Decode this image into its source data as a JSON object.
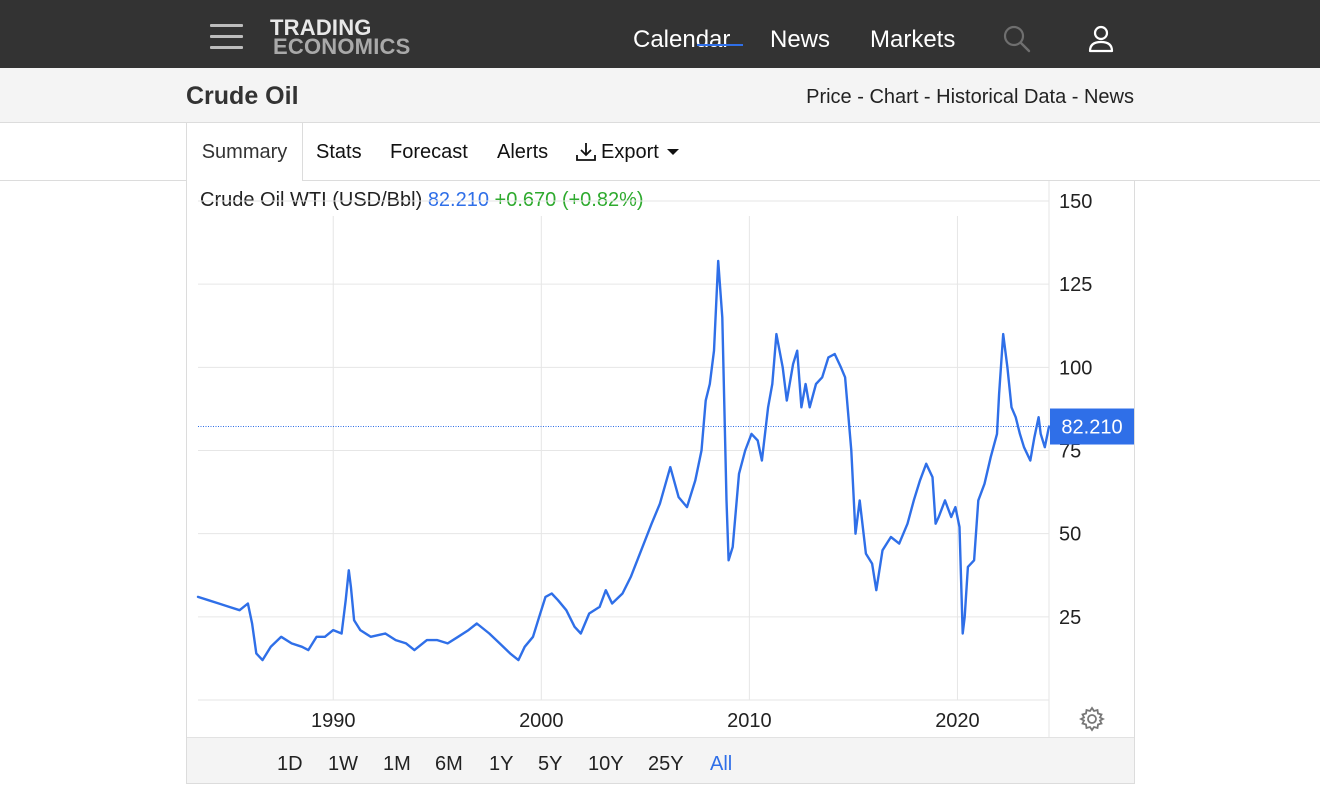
{
  "nav": {
    "logo_line1": "TRADING",
    "logo_line2": "ECONOMICS",
    "calendar": "Calendar",
    "news": "News",
    "markets": "Markets",
    "icons": [
      "menu-icon",
      "search-icon",
      "user-icon"
    ]
  },
  "header": {
    "title": "Crude Oil",
    "links": [
      "Price",
      "Chart",
      "Historical Data",
      "News"
    ],
    "separator": " - "
  },
  "tabs": {
    "summary": "Summary",
    "stats": "Stats",
    "forecast": "Forecast",
    "alerts": "Alerts",
    "export": "Export"
  },
  "quote": {
    "name": "Crude Oil WTI (USD/Bbl)",
    "price": "82.210",
    "change": "+0.670 (+0.82%)"
  },
  "colors": {
    "line": "#2f6fe8",
    "positive": "#2eaa2e",
    "accent": "#2f6fe8"
  },
  "ranges": [
    "1D",
    "1W",
    "1M",
    "6M",
    "1Y",
    "5Y",
    "10Y",
    "25Y",
    "All"
  ],
  "active_range": "All",
  "chart_data": {
    "type": "line",
    "title": "Crude Oil WTI (USD/Bbl)",
    "xlabel": "",
    "ylabel": "",
    "xlim": [
      1983.5,
      2024.4
    ],
    "ylim": [
      0,
      150
    ],
    "x_ticks": [
      1990,
      2000,
      2010,
      2020
    ],
    "y_ticks": [
      25,
      50,
      75,
      100,
      125,
      150
    ],
    "grid": true,
    "last_value": 82.21,
    "last_value_label": "82.210",
    "series": [
      {
        "x": [
          1983.5,
          1984,
          1984.5,
          1985,
          1985.5,
          1985.9,
          1986.1,
          1986.3,
          1986.6,
          1987,
          1987.5,
          1988,
          1988.5,
          1988.8,
          1989.2,
          1989.6,
          1990,
          1990.4,
          1990.6,
          1990.75,
          1990.85,
          1991.0,
          1991.3,
          1991.8,
          1992.5,
          1993,
          1993.5,
          1993.9,
          1994.5,
          1995,
          1995.5,
          1996,
          1996.5,
          1996.9,
          1997.5,
          1998,
          1998.5,
          1998.9,
          1999.2,
          1999.6,
          1999.9,
          2000.2,
          2000.5,
          2000.8,
          2001.2,
          2001.6,
          2001.9,
          2002.3,
          2002.8,
          2003.1,
          2003.4,
          2003.9,
          2004.3,
          2004.8,
          2005.3,
          2005.7,
          2006.2,
          2006.6,
          2007.0,
          2007.4,
          2007.7,
          2007.9,
          2008.1,
          2008.3,
          2008.5,
          2008.7,
          2008.9,
          2009.0,
          2009.2,
          2009.5,
          2009.8,
          2010.1,
          2010.4,
          2010.6,
          2010.9,
          2011.1,
          2011.3,
          2011.6,
          2011.8,
          2012.1,
          2012.3,
          2012.5,
          2012.7,
          2012.9,
          2013.2,
          2013.5,
          2013.8,
          2014.1,
          2014.4,
          2014.6,
          2014.9,
          2015.1,
          2015.3,
          2015.6,
          2015.9,
          2016.1,
          2016.4,
          2016.8,
          2017.2,
          2017.6,
          2017.9,
          2018.2,
          2018.5,
          2018.8,
          2018.95,
          2019.1,
          2019.4,
          2019.7,
          2019.9,
          2020.1,
          2020.25,
          2020.35,
          2020.5,
          2020.8,
          2021.0,
          2021.3,
          2021.6,
          2021.9,
          2022.0,
          2022.2,
          2022.4,
          2022.6,
          2022.8,
          2023.0,
          2023.2,
          2023.5,
          2023.7,
          2023.9,
          2024.0,
          2024.2,
          2024.4
        ],
        "values": [
          31,
          30,
          29,
          28,
          27,
          29,
          23,
          14,
          12,
          16,
          19,
          17,
          16,
          15,
          19,
          19,
          21,
          20,
          30,
          39,
          34,
          24,
          21,
          19,
          20,
          18,
          17,
          15,
          18,
          18,
          17,
          19,
          21,
          23,
          20,
          17,
          14,
          12,
          16,
          19,
          25,
          31,
          32,
          30,
          27,
          22,
          20,
          26,
          28,
          33,
          29,
          32,
          37,
          45,
          53,
          59,
          70,
          61,
          58,
          66,
          75,
          90,
          95,
          105,
          132,
          115,
          60,
          42,
          46,
          68,
          75,
          80,
          78,
          72,
          88,
          95,
          110,
          100,
          90,
          101,
          105,
          88,
          95,
          88,
          95,
          97,
          103,
          104,
          100,
          97,
          75,
          50,
          60,
          44,
          41,
          33,
          45,
          49,
          47,
          53,
          60,
          66,
          71,
          67,
          53,
          55,
          60,
          55,
          58,
          52,
          20,
          25,
          40,
          42,
          60,
          65,
          73,
          80,
          92,
          110,
          100,
          88,
          85,
          80,
          76,
          72,
          79,
          85,
          80,
          76,
          82.21
        ]
      }
    ]
  }
}
